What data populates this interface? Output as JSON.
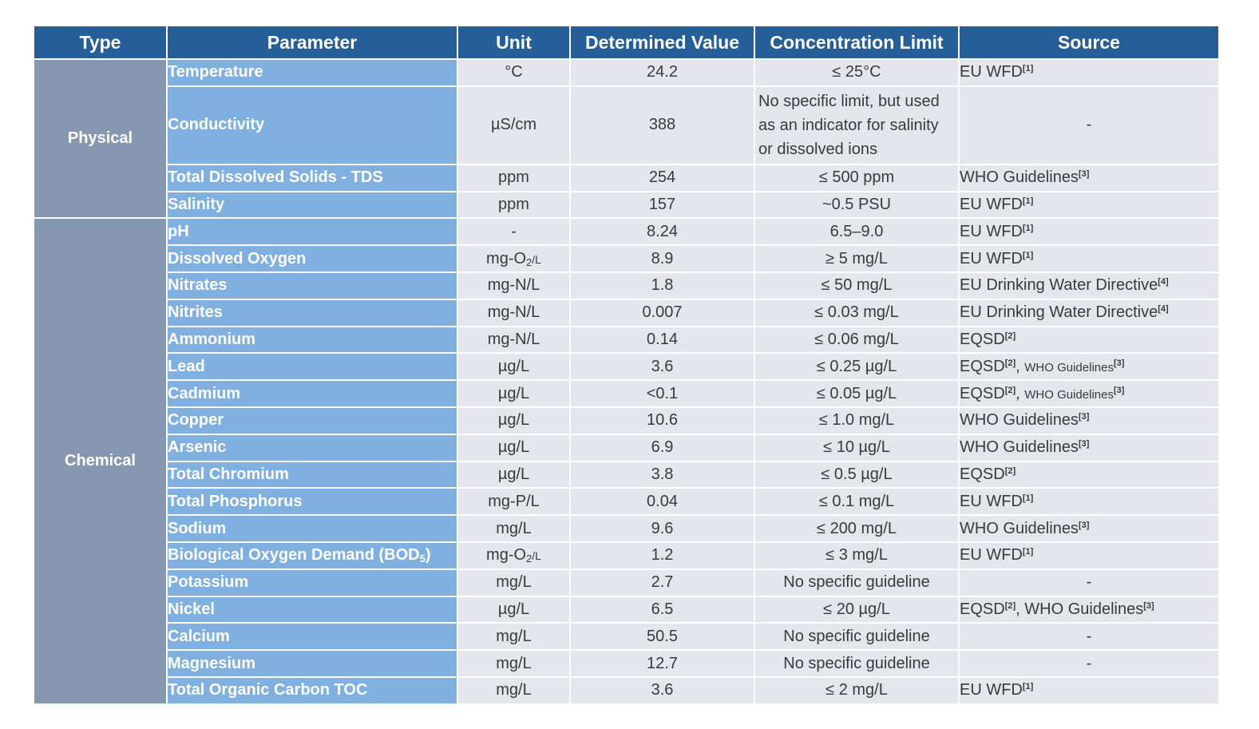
{
  "headers": {
    "type": "Type",
    "parameter": "Parameter",
    "unit": "Unit",
    "value": "Determined Value",
    "limit": "Concentration Limit",
    "source": "Source"
  },
  "groups": {
    "physical": "Physical",
    "chemical": "Chemical"
  },
  "rows": [
    {
      "param": "Temperature",
      "unit": "°C",
      "value": "24.2",
      "limit": "≤ 25°C",
      "src_a": "EU WFD",
      "ref_a": "[1]"
    },
    {
      "param": "Conductivity",
      "unit": "µS/cm",
      "value": "388",
      "limit_lines": [
        "No specific limit, but used",
        "as an indicator for salinity",
        "or dissolved ions"
      ],
      "source": "-"
    },
    {
      "param": "Total Dissolved Solids - TDS",
      "unit": "ppm",
      "value": "254",
      "limit": "≤ 500 ppm",
      "src_a": "WHO Guidelines",
      "ref_a": "[3]"
    },
    {
      "param": "Salinity",
      "unit": "ppm",
      "value": "157",
      "limit": "~0.5 PSU",
      "src_a": "EU WFD",
      "ref_a": "[1]"
    },
    {
      "param": "pH",
      "unit": "-",
      "value": "8.24",
      "limit": "6.5–9.0",
      "src_a": "EU WFD",
      "ref_a": "[1]"
    },
    {
      "param": "Dissolved Oxygen",
      "unit_main": "mg-O",
      "unit_sub": "2",
      "unit_tail": "/L",
      "value": "8.9",
      "limit": "≥ 5 mg/L",
      "src_a": "EU WFD",
      "ref_a": "[1]"
    },
    {
      "param": "Nitrates",
      "unit": "mg-N/L",
      "value": "1.8",
      "limit": "≤ 50 mg/L",
      "src_a": "EU Drinking Water Directive",
      "ref_a": "[4]"
    },
    {
      "param": "Nitrites",
      "unit": "mg-N/L",
      "value": "0.007",
      "limit": "≤ 0.03 mg/L",
      "src_a": "EU Drinking Water Directive",
      "ref_a": "[4]"
    },
    {
      "param": "Ammonium",
      "unit": "mg-N/L",
      "value": "0.14",
      "limit": "≤ 0.06 mg/L",
      "src_a": "EQSD",
      "ref_a": "[2]"
    },
    {
      "param": "Lead",
      "unit": "µg/L",
      "value": "3.6",
      "limit": "≤ 0.25 µg/L",
      "src_a": "EQSD",
      "ref_a": "[2]",
      "sep": ", ",
      "src_b": "WHO Guidelines",
      "ref_b": "[3]",
      "small_b": true
    },
    {
      "param": "Cadmium",
      "unit": "µg/L",
      "value": "<0.1",
      "limit": "≤ 0.05 µg/L",
      "src_a": "EQSD",
      "ref_a": "[2]",
      "sep": ", ",
      "src_b": "WHO Guidelines",
      "ref_b": "[3]",
      "small_b": true
    },
    {
      "param": "Copper",
      "unit": "µg/L",
      "value": "10.6",
      "limit": "≤ 1.0 mg/L",
      "src_a": "WHO Guidelines",
      "ref_a": "[3]"
    },
    {
      "param": "Arsenic",
      "unit": "µg/L",
      "value": "6.9",
      "limit": "≤ 10 µg/L",
      "src_a": "WHO Guidelines",
      "ref_a": "[3]"
    },
    {
      "param": "Total Chromium",
      "unit": "µg/L",
      "value": "3.8",
      "limit": "≤ 0.5 µg/L",
      "src_a": "EQSD",
      "ref_a": "[2]"
    },
    {
      "param": "Total Phosphorus",
      "unit": "mg-P/L",
      "value": "0.04",
      "limit": "≤ 0.1 mg/L",
      "src_a": "EU WFD",
      "ref_a": "[1]"
    },
    {
      "param": "Sodium",
      "unit": "mg/L",
      "value": "9.6",
      "limit": "≤ 200 mg/L",
      "src_a": "WHO Guidelines",
      "ref_a": "[3]"
    },
    {
      "param_main": "Biological Oxygen Demand (BOD",
      "param_sub": "5",
      "param_tail": ")",
      "unit_main": "mg-O",
      "unit_sub": "2",
      "unit_tail": "/L",
      "value": "1.2",
      "limit": "≤ 3 mg/L",
      "src_a": "EU WFD",
      "ref_a": "[1]"
    },
    {
      "param": "Potassium",
      "unit": "mg/L",
      "value": "2.7",
      "limit": "No specific guideline",
      "source": "-"
    },
    {
      "param": "Nickel",
      "unit": "µg/L",
      "value": "6.5",
      "limit": "≤ 20 µg/L",
      "src_a": "EQSD",
      "ref_a": "[2]",
      "sep": ", ",
      "src_b": "WHO Guidelines",
      "ref_b": "[3]"
    },
    {
      "param": "Calcium",
      "unit": "mg/L",
      "value": "50.5",
      "limit": "No specific guideline",
      "source": "-"
    },
    {
      "param": "Magnesium",
      "unit": "mg/L",
      "value": "12.7",
      "limit": "No specific guideline",
      "source": "-"
    },
    {
      "param": "Total Organic Carbon TOC",
      "unit": "mg/L",
      "value": "3.6",
      "limit": "≤ 2 mg/L",
      "src_a": "EU WFD",
      "ref_a": "[1]"
    }
  ]
}
